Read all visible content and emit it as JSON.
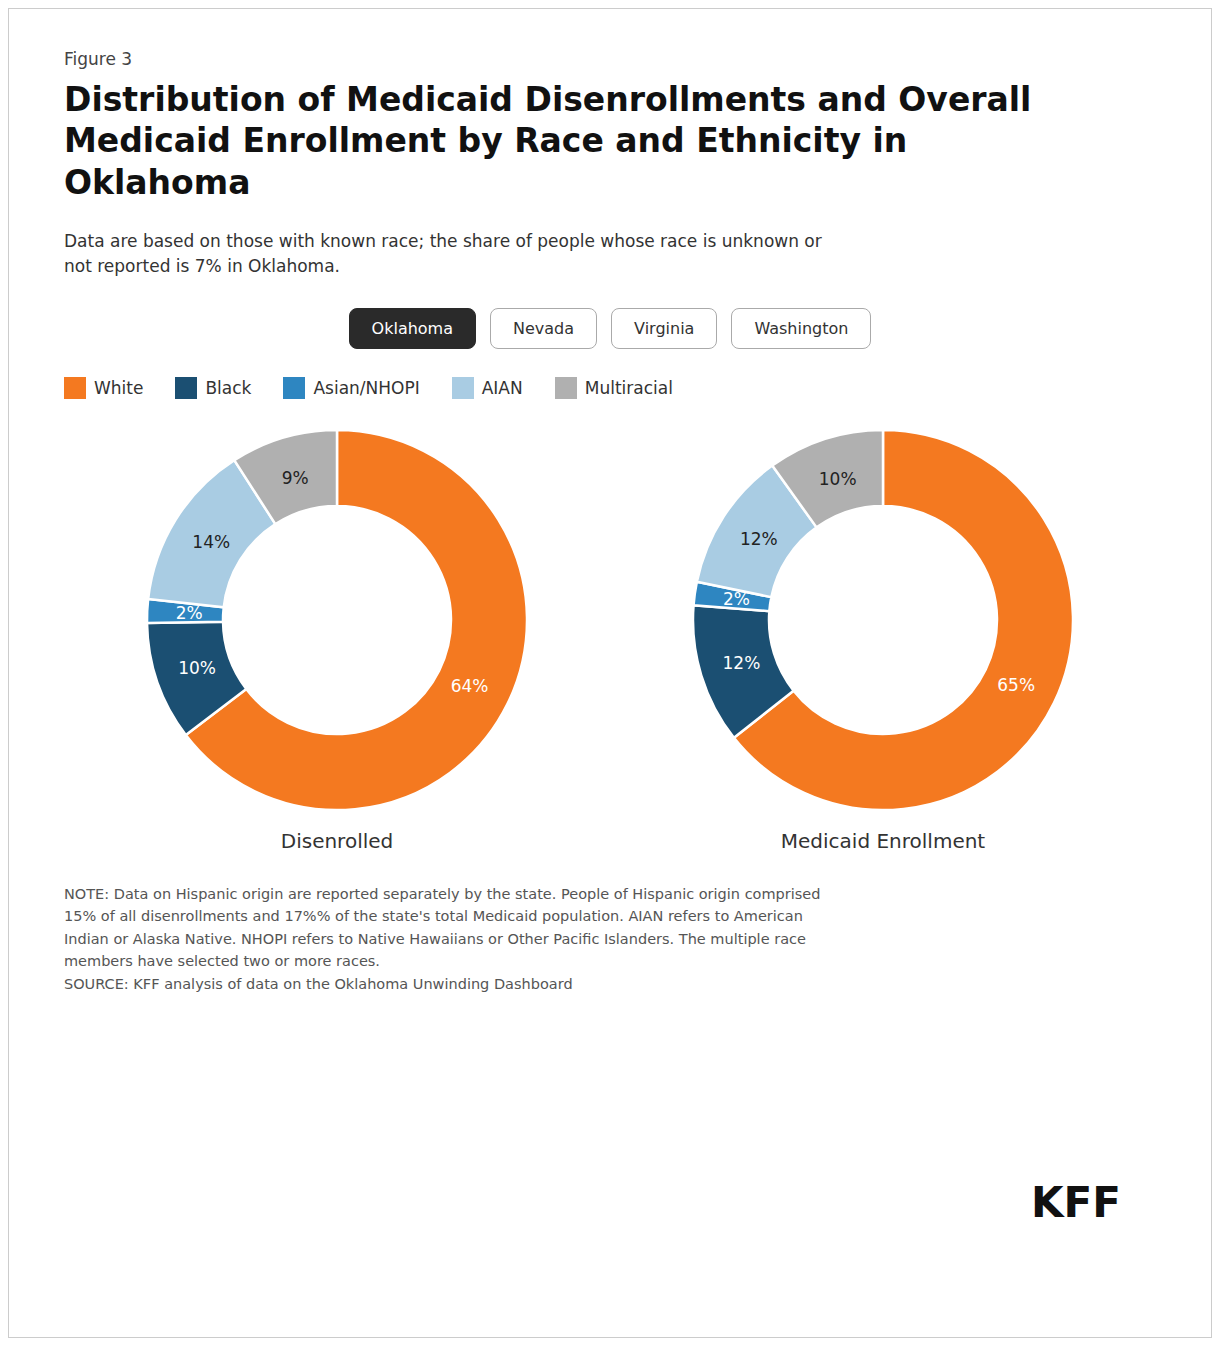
{
  "title": "Distribution of Medicaid Disenrollments and Overall\nMedicaid Enrollment by Race and Ethnicity in\nOklahoma",
  "subtitle": "Data are based on those with known race; the share of people whose race is unknown or\nnot reported is 7% in Oklahoma.",
  "annotations": [
    "Figure 3",
    "Oklahoma",
    "Nevada",
    "Virginia",
    "Washington",
    "NOTE: Data on Hispanic origin are reported separately by the state. People of Hispanic origin comprised\n15% of all disenrollments and 17%% of the state's total Medicaid population. AIAN refers to American\nIndian or Alaska Native. NHOPI refers to Native Hawaiians or Other Pacific Islanders. The multiple race\nmembers have selected two or more races.\nSOURCE: KFF analysis of data on the Oklahoma Unwinding Dashboard",
    "KFF"
  ],
  "chart_data": [
    {
      "type": "pie",
      "title": "Disenrolled",
      "categories": [
        "White",
        "Black",
        "Asian/NHOPI",
        "AIAN",
        "Multiracial"
      ],
      "values": [
        64,
        10,
        2,
        14,
        9
      ],
      "value_labels": [
        "64%",
        "10%",
        "2%",
        "14%",
        "9%"
      ],
      "colors": [
        "#F47920",
        "#1B4F72",
        "#2E86C1",
        "#A9CCE3",
        "#B0B0B0"
      ],
      "data_labels": true,
      "legend": "top"
    },
    {
      "type": "pie",
      "title": "Medicaid Enrollment",
      "categories": [
        "White",
        "Black",
        "Asian/NHOPI",
        "AIAN",
        "Multiracial"
      ],
      "values": [
        65,
        12,
        2,
        12,
        10
      ],
      "value_labels": [
        "65%",
        "12%",
        "2%",
        "12%",
        "10%"
      ],
      "colors": [
        "#F47920",
        "#1B4F72",
        "#2E86C1",
        "#A9CCE3",
        "#B0B0B0"
      ],
      "data_labels": true
    }
  ]
}
